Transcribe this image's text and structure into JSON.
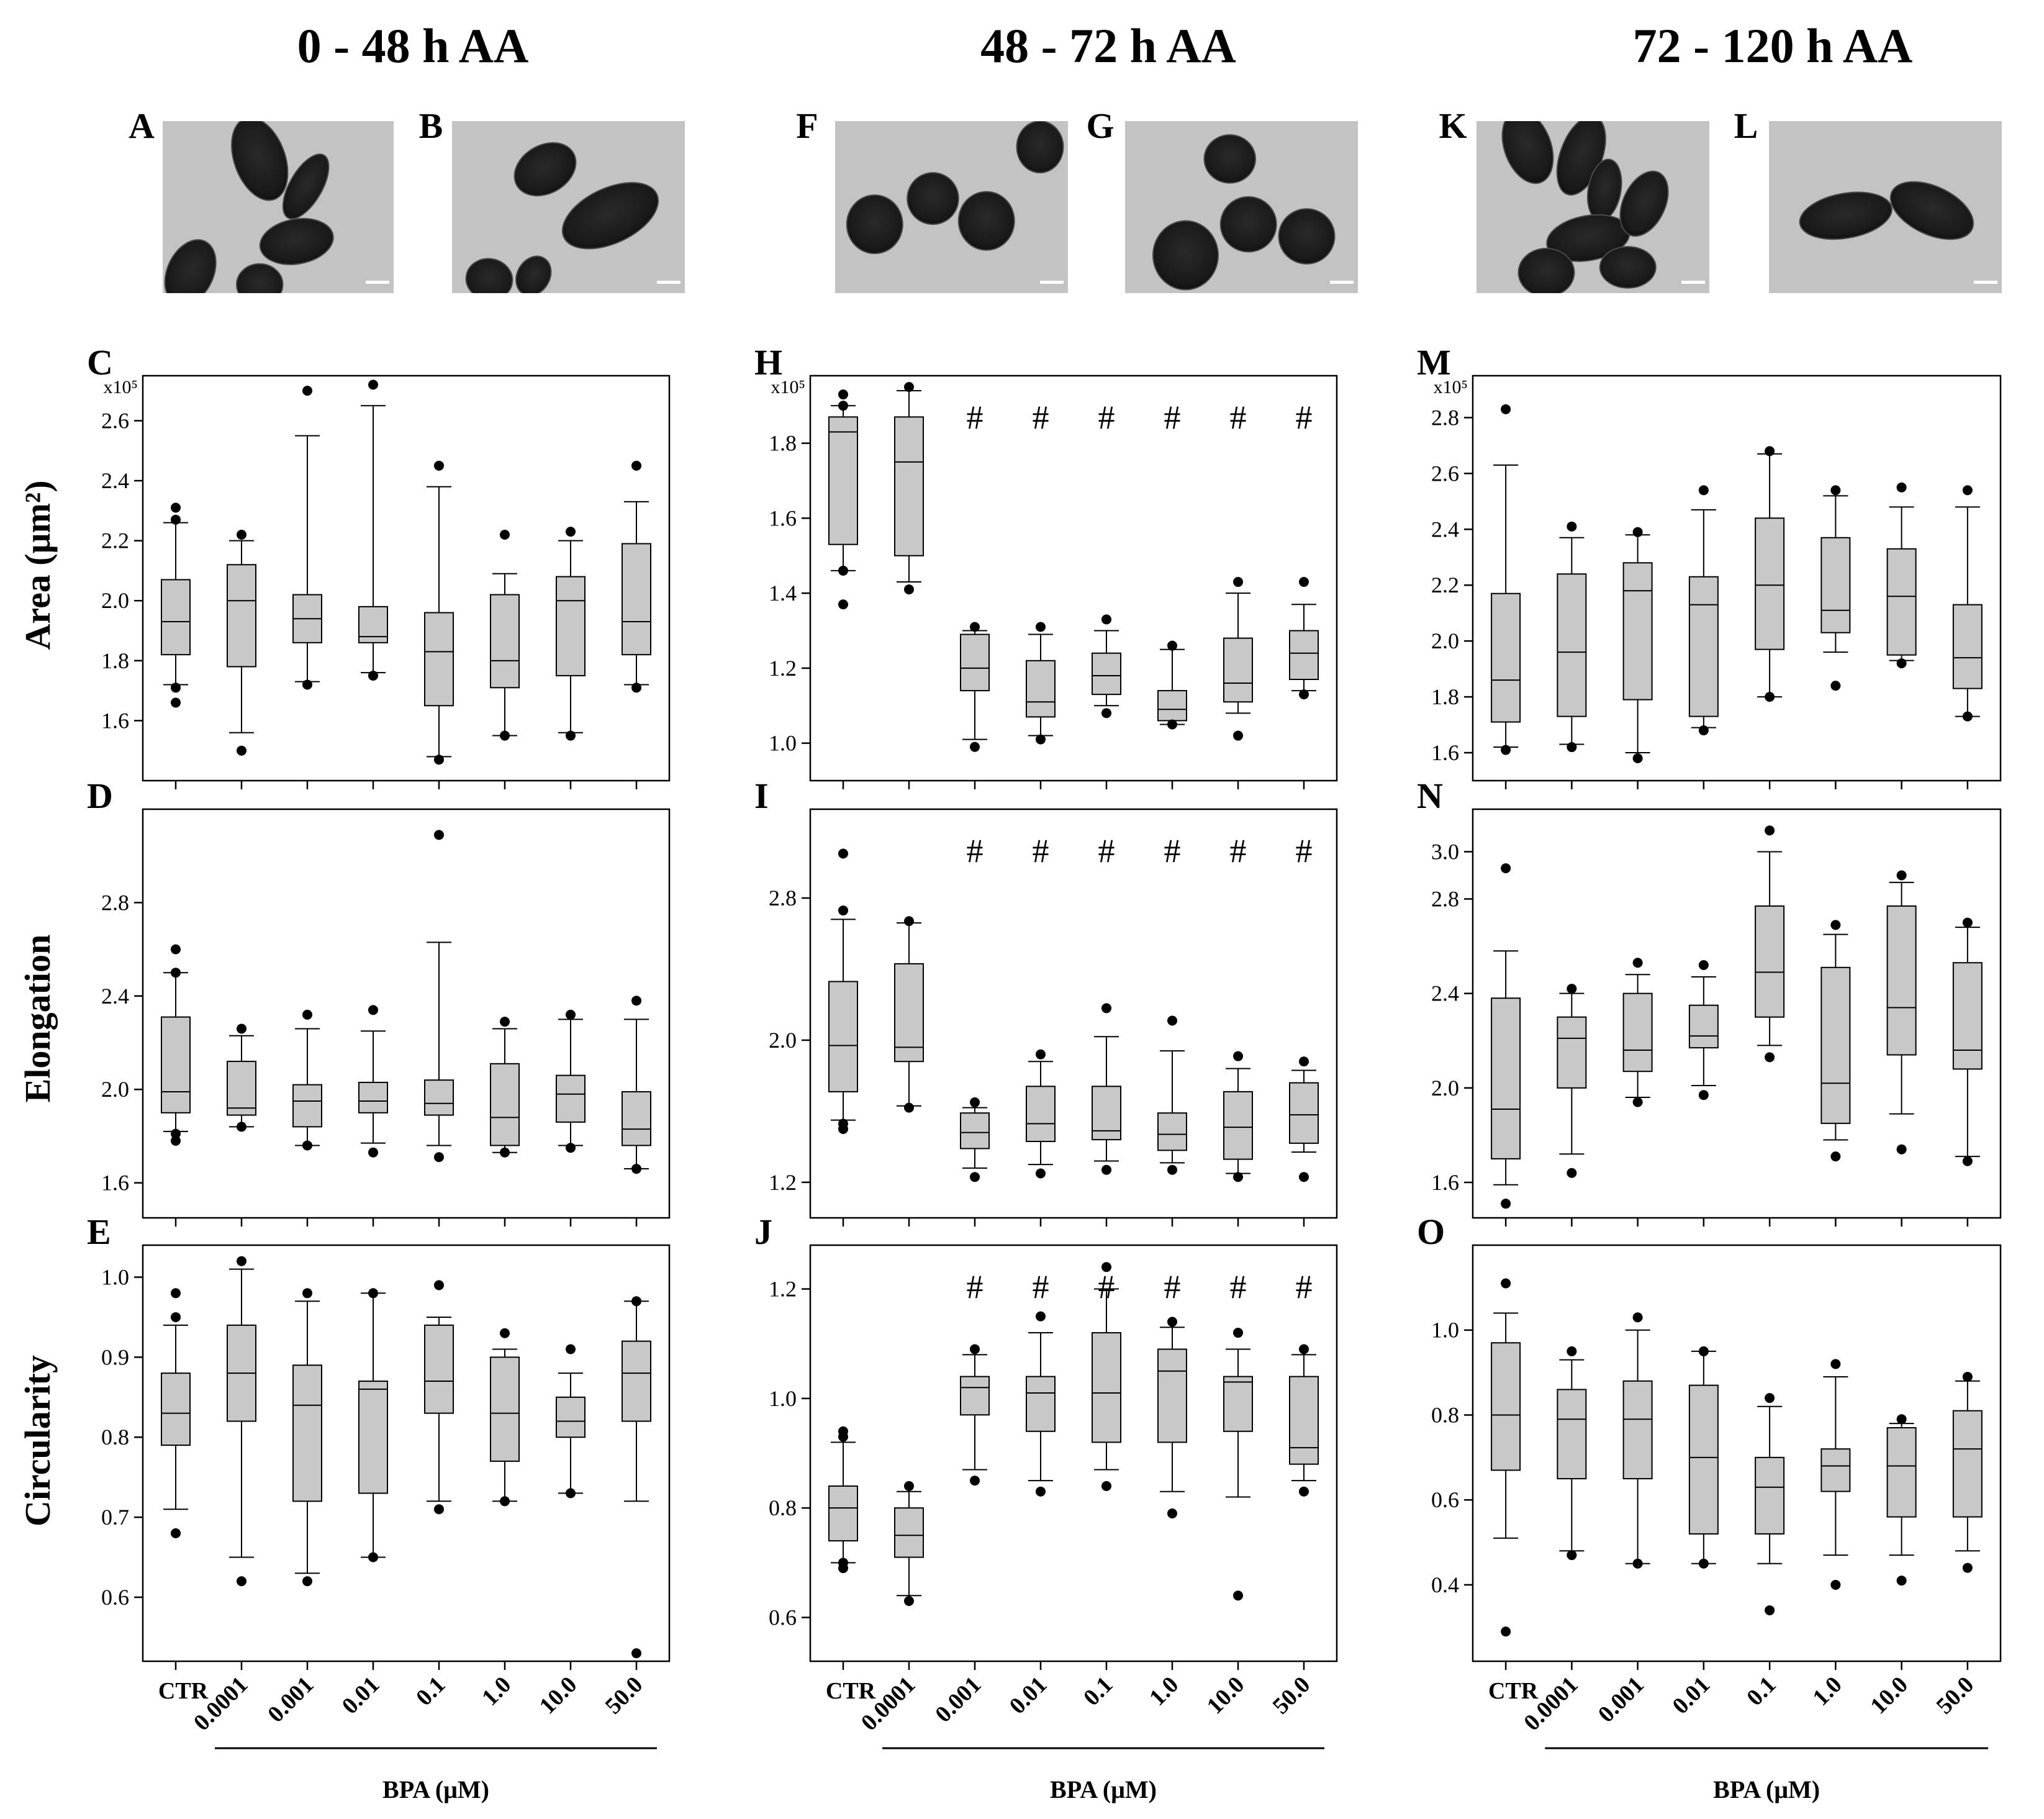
{
  "columns": [
    {
      "title": "0 - 48 h AA"
    },
    {
      "title": "48 - 72 h AA"
    },
    {
      "title": "72 - 120 h AA"
    }
  ],
  "images": [
    {
      "letter": "A",
      "kind": "elongated"
    },
    {
      "letter": "B",
      "kind": "elongated"
    },
    {
      "letter": "F",
      "kind": "round"
    },
    {
      "letter": "G",
      "kind": "round"
    },
    {
      "letter": "K",
      "kind": "elongated"
    },
    {
      "letter": "L",
      "kind": "elongated"
    }
  ],
  "row_labels": {
    "area": "Area (μm²)",
    "elongation": "Elongation",
    "circularity": "Circularity"
  },
  "x_axis": {
    "categories": [
      "CTR",
      "0.0001",
      "0.001",
      "0.01",
      "0.1",
      "1.0",
      "10.0",
      "50.0"
    ],
    "label": "BPA (μM)"
  },
  "significance_marker": "#",
  "chart_data": [
    {
      "panel": "C",
      "type": "box",
      "metric": "Area",
      "scale_label": "x10⁵",
      "ylim": [
        1.4,
        2.75
      ],
      "yticks": [
        "1.6",
        "1.8",
        "2.0",
        "2.2",
        "2.4",
        "2.6"
      ],
      "sig": [
        false,
        false,
        false,
        false,
        false,
        false,
        false,
        false
      ],
      "boxes": [
        {
          "wl": 1.72,
          "q1": 1.82,
          "med": 1.93,
          "q3": 2.07,
          "wh": 2.26,
          "out": [
            1.66,
            1.71,
            2.27,
            2.31
          ]
        },
        {
          "wl": 1.56,
          "q1": 1.78,
          "med": 2.0,
          "q3": 2.12,
          "wh": 2.2,
          "out": [
            1.5,
            2.22
          ]
        },
        {
          "wl": 1.73,
          "q1": 1.86,
          "med": 1.94,
          "q3": 2.02,
          "wh": 2.55,
          "out": [
            1.72,
            2.7
          ]
        },
        {
          "wl": 1.76,
          "q1": 1.86,
          "med": 1.88,
          "q3": 1.98,
          "wh": 2.65,
          "out": [
            1.75,
            2.72
          ]
        },
        {
          "wl": 1.48,
          "q1": 1.65,
          "med": 1.83,
          "q3": 1.96,
          "wh": 2.38,
          "out": [
            1.47,
            2.45
          ]
        },
        {
          "wl": 1.55,
          "q1": 1.71,
          "med": 1.8,
          "q3": 2.02,
          "wh": 2.09,
          "out": [
            1.55,
            2.22
          ]
        },
        {
          "wl": 1.56,
          "q1": 1.75,
          "med": 2.0,
          "q3": 2.08,
          "wh": 2.2,
          "out": [
            1.55,
            2.23
          ]
        },
        {
          "wl": 1.72,
          "q1": 1.82,
          "med": 1.93,
          "q3": 2.19,
          "wh": 2.33,
          "out": [
            1.71,
            2.45
          ]
        }
      ]
    },
    {
      "panel": "H",
      "type": "box",
      "metric": "Area",
      "scale_label": "x10⁵",
      "ylim": [
        0.9,
        1.98
      ],
      "yticks": [
        "1.0",
        "1.2",
        "1.4",
        "1.6",
        "1.8"
      ],
      "sig": [
        false,
        false,
        true,
        true,
        true,
        true,
        true,
        true
      ],
      "boxes": [
        {
          "wl": 1.46,
          "q1": 1.53,
          "med": 1.83,
          "q3": 1.87,
          "wh": 1.9,
          "out": [
            1.37,
            1.46,
            1.9,
            1.93
          ]
        },
        {
          "wl": 1.43,
          "q1": 1.5,
          "med": 1.75,
          "q3": 1.87,
          "wh": 1.94,
          "out": [
            1.41,
            1.95
          ]
        },
        {
          "wl": 1.01,
          "q1": 1.14,
          "med": 1.2,
          "q3": 1.29,
          "wh": 1.3,
          "out": [
            0.99,
            1.31
          ]
        },
        {
          "wl": 1.02,
          "q1": 1.07,
          "med": 1.11,
          "q3": 1.22,
          "wh": 1.29,
          "out": [
            1.01,
            1.31
          ]
        },
        {
          "wl": 1.1,
          "q1": 1.13,
          "med": 1.18,
          "q3": 1.24,
          "wh": 1.3,
          "out": [
            1.08,
            1.33
          ]
        },
        {
          "wl": 1.05,
          "q1": 1.06,
          "med": 1.09,
          "q3": 1.14,
          "wh": 1.25,
          "out": [
            1.05,
            1.26
          ]
        },
        {
          "wl": 1.08,
          "q1": 1.11,
          "med": 1.16,
          "q3": 1.28,
          "wh": 1.4,
          "out": [
            1.02,
            1.43
          ]
        },
        {
          "wl": 1.14,
          "q1": 1.17,
          "med": 1.24,
          "q3": 1.3,
          "wh": 1.37,
          "out": [
            1.13,
            1.43
          ]
        }
      ]
    },
    {
      "panel": "M",
      "type": "box",
      "metric": "Area",
      "scale_label": "x10⁵",
      "ylim": [
        1.5,
        2.95
      ],
      "yticks": [
        "1.6",
        "1.8",
        "2.0",
        "2.2",
        "2.4",
        "2.6",
        "2.8"
      ],
      "sig": [
        false,
        false,
        false,
        false,
        false,
        false,
        false,
        false
      ],
      "boxes": [
        {
          "wl": 1.62,
          "q1": 1.71,
          "med": 1.86,
          "q3": 2.17,
          "wh": 2.63,
          "out": [
            1.61,
            2.83
          ]
        },
        {
          "wl": 1.63,
          "q1": 1.73,
          "med": 1.96,
          "q3": 2.24,
          "wh": 2.37,
          "out": [
            1.62,
            2.41
          ]
        },
        {
          "wl": 1.6,
          "q1": 1.79,
          "med": 2.18,
          "q3": 2.28,
          "wh": 2.38,
          "out": [
            1.58,
            2.39
          ]
        },
        {
          "wl": 1.69,
          "q1": 1.73,
          "med": 2.13,
          "q3": 2.23,
          "wh": 2.47,
          "out": [
            1.68,
            2.54
          ]
        },
        {
          "wl": 1.8,
          "q1": 1.97,
          "med": 2.2,
          "q3": 2.44,
          "wh": 2.67,
          "out": [
            1.8,
            2.68
          ]
        },
        {
          "wl": 1.96,
          "q1": 2.03,
          "med": 2.11,
          "q3": 2.37,
          "wh": 2.52,
          "out": [
            1.84,
            2.54
          ]
        },
        {
          "wl": 1.93,
          "q1": 1.95,
          "med": 2.16,
          "q3": 2.33,
          "wh": 2.48,
          "out": [
            1.92,
            2.55
          ]
        },
        {
          "wl": 1.73,
          "q1": 1.83,
          "med": 1.94,
          "q3": 2.13,
          "wh": 2.48,
          "out": [
            1.73,
            2.54
          ]
        }
      ]
    },
    {
      "panel": "D",
      "type": "box",
      "metric": "Elongation",
      "ylim": [
        1.45,
        3.2
      ],
      "yticks": [
        "1.6",
        "2.0",
        "2.4",
        "2.8"
      ],
      "sig": [
        false,
        false,
        false,
        false,
        false,
        false,
        false,
        false
      ],
      "boxes": [
        {
          "wl": 1.82,
          "q1": 1.9,
          "med": 1.99,
          "q3": 2.31,
          "wh": 2.5,
          "out": [
            1.78,
            1.81,
            2.5,
            2.6
          ]
        },
        {
          "wl": 1.84,
          "q1": 1.89,
          "med": 1.92,
          "q3": 2.12,
          "wh": 2.23,
          "out": [
            1.84,
            2.26
          ]
        },
        {
          "wl": 1.76,
          "q1": 1.84,
          "med": 1.95,
          "q3": 2.02,
          "wh": 2.26,
          "out": [
            1.76,
            2.32
          ]
        },
        {
          "wl": 1.77,
          "q1": 1.9,
          "med": 1.95,
          "q3": 2.03,
          "wh": 2.25,
          "out": [
            1.73,
            2.34
          ]
        },
        {
          "wl": 1.76,
          "q1": 1.89,
          "med": 1.94,
          "q3": 2.04,
          "wh": 2.63,
          "out": [
            1.71,
            3.09
          ]
        },
        {
          "wl": 1.73,
          "q1": 1.76,
          "med": 1.88,
          "q3": 2.11,
          "wh": 2.26,
          "out": [
            1.73,
            2.29
          ]
        },
        {
          "wl": 1.76,
          "q1": 1.86,
          "med": 1.98,
          "q3": 2.06,
          "wh": 2.3,
          "out": [
            1.75,
            2.32
          ]
        },
        {
          "wl": 1.66,
          "q1": 1.76,
          "med": 1.83,
          "q3": 1.99,
          "wh": 2.3,
          "out": [
            1.66,
            2.38
          ]
        }
      ]
    },
    {
      "panel": "I",
      "type": "box",
      "metric": "Elongation",
      "ylim": [
        1.0,
        3.3
      ],
      "yticks": [
        "1.2",
        "2.0",
        "2.8"
      ],
      "sig": [
        false,
        false,
        true,
        true,
        true,
        true,
        true,
        true
      ],
      "boxes": [
        {
          "wl": 1.55,
          "q1": 1.71,
          "med": 1.97,
          "q3": 2.33,
          "wh": 2.68,
          "out": [
            1.5,
            1.53,
            2.73,
            3.05
          ]
        },
        {
          "wl": 1.63,
          "q1": 1.88,
          "med": 1.96,
          "q3": 2.43,
          "wh": 2.66,
          "out": [
            1.62,
            2.67
          ]
        },
        {
          "wl": 1.28,
          "q1": 1.39,
          "med": 1.48,
          "q3": 1.59,
          "wh": 1.62,
          "out": [
            1.23,
            1.65
          ]
        },
        {
          "wl": 1.3,
          "q1": 1.43,
          "med": 1.53,
          "q3": 1.74,
          "wh": 1.88,
          "out": [
            1.25,
            1.92
          ]
        },
        {
          "wl": 1.32,
          "q1": 1.44,
          "med": 1.49,
          "q3": 1.74,
          "wh": 2.02,
          "out": [
            1.27,
            2.18
          ]
        },
        {
          "wl": 1.31,
          "q1": 1.38,
          "med": 1.47,
          "q3": 1.59,
          "wh": 1.94,
          "out": [
            1.27,
            2.11
          ]
        },
        {
          "wl": 1.25,
          "q1": 1.33,
          "med": 1.51,
          "q3": 1.71,
          "wh": 1.84,
          "out": [
            1.23,
            1.91
          ]
        },
        {
          "wl": 1.37,
          "q1": 1.42,
          "med": 1.58,
          "q3": 1.76,
          "wh": 1.83,
          "out": [
            1.23,
            1.88
          ]
        }
      ]
    },
    {
      "panel": "N",
      "type": "box",
      "metric": "Elongation",
      "ylim": [
        1.45,
        3.18
      ],
      "yticks": [
        "1.6",
        "2.0",
        "2.4",
        "2.8",
        "3.0"
      ],
      "sig": [
        false,
        false,
        false,
        false,
        false,
        false,
        false,
        false
      ],
      "boxes": [
        {
          "wl": 1.59,
          "q1": 1.7,
          "med": 1.91,
          "q3": 2.38,
          "wh": 2.58,
          "out": [
            1.51,
            2.93
          ]
        },
        {
          "wl": 1.72,
          "q1": 2.0,
          "med": 2.21,
          "q3": 2.3,
          "wh": 2.4,
          "out": [
            1.64,
            2.42
          ]
        },
        {
          "wl": 1.96,
          "q1": 2.07,
          "med": 2.16,
          "q3": 2.4,
          "wh": 2.48,
          "out": [
            1.94,
            2.53
          ]
        },
        {
          "wl": 2.01,
          "q1": 2.17,
          "med": 2.22,
          "q3": 2.35,
          "wh": 2.47,
          "out": [
            1.97,
            2.52
          ]
        },
        {
          "wl": 2.18,
          "q1": 2.3,
          "med": 2.49,
          "q3": 2.77,
          "wh": 3.0,
          "out": [
            2.13,
            3.09
          ]
        },
        {
          "wl": 1.78,
          "q1": 1.85,
          "med": 2.02,
          "q3": 2.51,
          "wh": 2.65,
          "out": [
            1.71,
            2.69
          ]
        },
        {
          "wl": 1.89,
          "q1": 2.14,
          "med": 2.34,
          "q3": 2.77,
          "wh": 2.87,
          "out": [
            1.74,
            2.9
          ]
        },
        {
          "wl": 1.71,
          "q1": 2.08,
          "med": 2.16,
          "q3": 2.53,
          "wh": 2.68,
          "out": [
            1.69,
            2.7
          ]
        }
      ]
    },
    {
      "panel": "E",
      "type": "box",
      "metric": "Circularity",
      "ylim": [
        0.52,
        1.04
      ],
      "yticks": [
        "0.6",
        "0.7",
        "0.8",
        "0.9",
        "1.0"
      ],
      "sig": [
        false,
        false,
        false,
        false,
        false,
        false,
        false,
        false
      ],
      "boxes": [
        {
          "wl": 0.71,
          "q1": 0.79,
          "med": 0.83,
          "q3": 0.88,
          "wh": 0.94,
          "out": [
            0.68,
            0.95,
            0.98
          ]
        },
        {
          "wl": 0.65,
          "q1": 0.82,
          "med": 0.88,
          "q3": 0.94,
          "wh": 1.01,
          "out": [
            0.62,
            1.02
          ]
        },
        {
          "wl": 0.63,
          "q1": 0.72,
          "med": 0.84,
          "q3": 0.89,
          "wh": 0.97,
          "out": [
            0.62,
            0.98
          ]
        },
        {
          "wl": 0.65,
          "q1": 0.73,
          "med": 0.86,
          "q3": 0.87,
          "wh": 0.98,
          "out": [
            0.65,
            0.98
          ]
        },
        {
          "wl": 0.72,
          "q1": 0.83,
          "med": 0.87,
          "q3": 0.94,
          "wh": 0.95,
          "out": [
            0.71,
            0.99
          ]
        },
        {
          "wl": 0.72,
          "q1": 0.77,
          "med": 0.83,
          "q3": 0.9,
          "wh": 0.91,
          "out": [
            0.72,
            0.93
          ]
        },
        {
          "wl": 0.73,
          "q1": 0.8,
          "med": 0.82,
          "q3": 0.85,
          "wh": 0.88,
          "out": [
            0.73,
            0.91
          ]
        },
        {
          "wl": 0.72,
          "q1": 0.82,
          "med": 0.88,
          "q3": 0.92,
          "wh": 0.97,
          "out": [
            0.53,
            0.97
          ]
        }
      ]
    },
    {
      "panel": "J",
      "type": "box",
      "metric": "Circularity",
      "ylim": [
        0.52,
        1.28
      ],
      "yticks": [
        "0.6",
        "0.8",
        "1.0",
        "1.2"
      ],
      "sig": [
        false,
        false,
        true,
        true,
        true,
        true,
        true,
        true
      ],
      "boxes": [
        {
          "wl": 0.7,
          "q1": 0.74,
          "med": 0.8,
          "q3": 0.84,
          "wh": 0.92,
          "out": [
            0.69,
            0.7,
            0.93,
            0.94
          ]
        },
        {
          "wl": 0.64,
          "q1": 0.71,
          "med": 0.75,
          "q3": 0.8,
          "wh": 0.83,
          "out": [
            0.63,
            0.84
          ]
        },
        {
          "wl": 0.87,
          "q1": 0.97,
          "med": 1.02,
          "q3": 1.04,
          "wh": 1.08,
          "out": [
            0.85,
            1.09
          ]
        },
        {
          "wl": 0.85,
          "q1": 0.94,
          "med": 1.01,
          "q3": 1.04,
          "wh": 1.12,
          "out": [
            0.83,
            1.15
          ]
        },
        {
          "wl": 0.87,
          "q1": 0.92,
          "med": 1.01,
          "q3": 1.12,
          "wh": 1.2,
          "out": [
            0.84,
            1.24
          ]
        },
        {
          "wl": 0.83,
          "q1": 0.92,
          "med": 1.05,
          "q3": 1.09,
          "wh": 1.13,
          "out": [
            0.79,
            1.14
          ]
        },
        {
          "wl": 0.82,
          "q1": 0.94,
          "med": 1.03,
          "q3": 1.04,
          "wh": 1.09,
          "out": [
            0.64,
            1.12
          ]
        },
        {
          "wl": 0.85,
          "q1": 0.88,
          "med": 0.91,
          "q3": 1.04,
          "wh": 1.08,
          "out": [
            0.83,
            1.09
          ]
        }
      ]
    },
    {
      "panel": "O",
      "type": "box",
      "metric": "Circularity",
      "ylim": [
        0.22,
        1.2
      ],
      "yticks": [
        "0.4",
        "0.6",
        "0.8",
        "1.0"
      ],
      "sig": [
        false,
        false,
        false,
        false,
        false,
        false,
        false,
        false
      ],
      "boxes": [
        {
          "wl": 0.51,
          "q1": 0.67,
          "med": 0.8,
          "q3": 0.97,
          "wh": 1.04,
          "out": [
            0.29,
            1.11
          ]
        },
        {
          "wl": 0.48,
          "q1": 0.65,
          "med": 0.79,
          "q3": 0.86,
          "wh": 0.93,
          "out": [
            0.47,
            0.95
          ]
        },
        {
          "wl": 0.45,
          "q1": 0.65,
          "med": 0.79,
          "q3": 0.88,
          "wh": 1.0,
          "out": [
            0.45,
            1.03
          ]
        },
        {
          "wl": 0.45,
          "q1": 0.52,
          "med": 0.7,
          "q3": 0.87,
          "wh": 0.95,
          "out": [
            0.45,
            0.95
          ]
        },
        {
          "wl": 0.45,
          "q1": 0.52,
          "med": 0.63,
          "q3": 0.7,
          "wh": 0.82,
          "out": [
            0.34,
            0.84
          ]
        },
        {
          "wl": 0.47,
          "q1": 0.62,
          "med": 0.68,
          "q3": 0.72,
          "wh": 0.89,
          "out": [
            0.4,
            0.92
          ]
        },
        {
          "wl": 0.47,
          "q1": 0.56,
          "med": 0.68,
          "q3": 0.77,
          "wh": 0.78,
          "out": [
            0.41,
            0.79
          ]
        },
        {
          "wl": 0.48,
          "q1": 0.56,
          "med": 0.72,
          "q3": 0.81,
          "wh": 0.88,
          "out": [
            0.44,
            0.89
          ]
        }
      ]
    }
  ]
}
